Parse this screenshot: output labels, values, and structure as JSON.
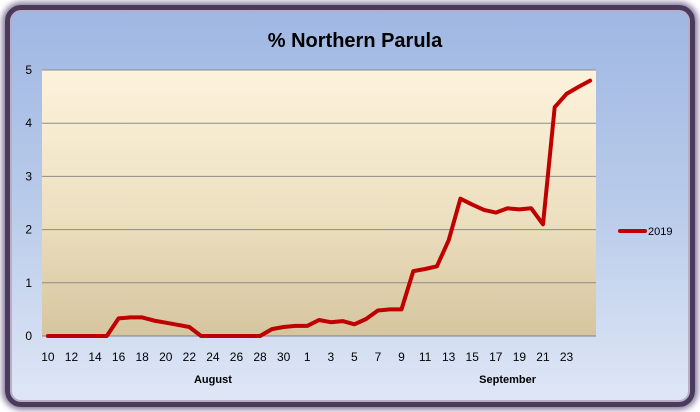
{
  "chart_data": {
    "type": "line",
    "title": "% Northern Parula",
    "ylim": [
      0,
      5
    ],
    "y_ticks": [
      "0",
      "1",
      "2",
      "3",
      "4",
      "5"
    ],
    "x_tick_labels": [
      "10",
      "12",
      "14",
      "16",
      "18",
      "20",
      "22",
      "24",
      "26",
      "28",
      "30",
      "1",
      "3",
      "5",
      "7",
      "9",
      "11",
      "13",
      "15",
      "17",
      "19",
      "21",
      "23"
    ],
    "month_labels": [
      {
        "label": "August",
        "at_index": 14
      },
      {
        "label": "September",
        "at_index": 39
      }
    ],
    "grid": "horizontal",
    "legend_position": "right",
    "series": [
      {
        "name": "2019",
        "color": "#c00000",
        "values": [
          0,
          0,
          0,
          0,
          0,
          0,
          0.33,
          0.35,
          0.35,
          0.29,
          0.25,
          0.21,
          0.17,
          0,
          0,
          0,
          0,
          0,
          0,
          0.13,
          0.17,
          0.19,
          0.19,
          0.3,
          0.26,
          0.28,
          0.22,
          0.32,
          0.48,
          0.5,
          0.5,
          1.22,
          1.26,
          1.31,
          1.8,
          2.58,
          2.47,
          2.37,
          2.32,
          2.4,
          2.38,
          2.4,
          2.1,
          4.3,
          4.55,
          4.68,
          4.8
        ]
      }
    ]
  }
}
